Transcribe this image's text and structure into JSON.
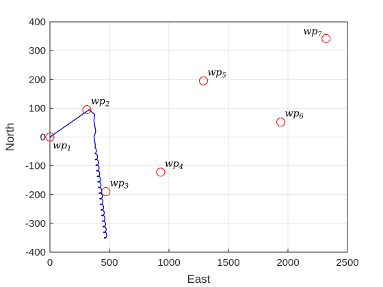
{
  "chart_data": {
    "type": "scatter",
    "xlabel": "East",
    "ylabel": "North",
    "xlim": [
      0,
      2500
    ],
    "ylim": [
      -400,
      400
    ],
    "xticks": [
      0,
      500,
      1000,
      1500,
      2000,
      2500
    ],
    "yticks": [
      -400,
      -300,
      -200,
      -100,
      0,
      100,
      200,
      300,
      400
    ],
    "xtick_labels": [
      "0",
      "500",
      "1000",
      "1500",
      "2000",
      "2500"
    ],
    "ytick_labels": [
      "-400",
      "-300",
      "-200",
      "-100",
      "0",
      "100",
      "200",
      "300",
      "400"
    ],
    "grid": true,
    "waypoints": [
      {
        "name": "wp",
        "sub": "1",
        "x": 0,
        "y": 0,
        "label_pos": "below-right"
      },
      {
        "name": "wp",
        "sub": "2",
        "x": 310,
        "y": 95,
        "label_pos": "above-right"
      },
      {
        "name": "wp",
        "sub": "3",
        "x": 470,
        "y": -190,
        "label_pos": "above-right"
      },
      {
        "name": "wp",
        "sub": "4",
        "x": 930,
        "y": -122,
        "label_pos": "above-right"
      },
      {
        "name": "wp",
        "sub": "5",
        "x": 1290,
        "y": 195,
        "label_pos": "above-right"
      },
      {
        "name": "wp",
        "sub": "6",
        "x": 1940,
        "y": 52,
        "label_pos": "above-right"
      },
      {
        "name": "wp",
        "sub": "7",
        "x": 2320,
        "y": 342,
        "label_pos": "above-left"
      }
    ],
    "path": {
      "color": "#0000cc",
      "points": [
        [
          0,
          0
        ],
        [
          330,
          95
        ],
        [
          375,
          78
        ],
        [
          370,
          55
        ],
        [
          385,
          20
        ],
        [
          370,
          0
        ],
        [
          378,
          -20
        ]
      ],
      "spiral": {
        "x_start": 378,
        "y_start": -20,
        "x_end": 470,
        "y_end": -350,
        "radius_x": 12,
        "radius_y": 10,
        "turns": 17
      }
    },
    "marker_color": "#ff0000"
  }
}
